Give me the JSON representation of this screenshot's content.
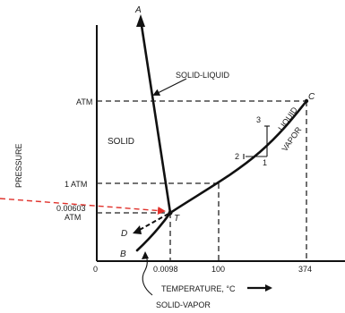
{
  "axes": {
    "y_label": "PRESSURE",
    "x_label": "TEMPERATURE, °C"
  },
  "y_ticks": {
    "atm_upper": "ATM",
    "one_atm": "1 ATM",
    "triple_value": "0.00603",
    "triple_unit": "ATM"
  },
  "x_ticks": {
    "zero": "0",
    "triple": "0.0098",
    "boiling": "100",
    "critical": "374"
  },
  "regions": {
    "solid": "SOLID",
    "liquid": "LIQUID",
    "vapor": "VAPOR"
  },
  "curves": {
    "solid_liquid": "SOLID-LIQUID",
    "solid_vapor": "SOLID-VAPOR"
  },
  "points": {
    "a": "A",
    "b": "B",
    "c": "C",
    "d": "D",
    "t": "T"
  },
  "path_numbers": {
    "one": "1",
    "two": "2",
    "three": "3"
  },
  "colors": {
    "ink": "#111111",
    "pointer_arrow": "#e0302a"
  }
}
